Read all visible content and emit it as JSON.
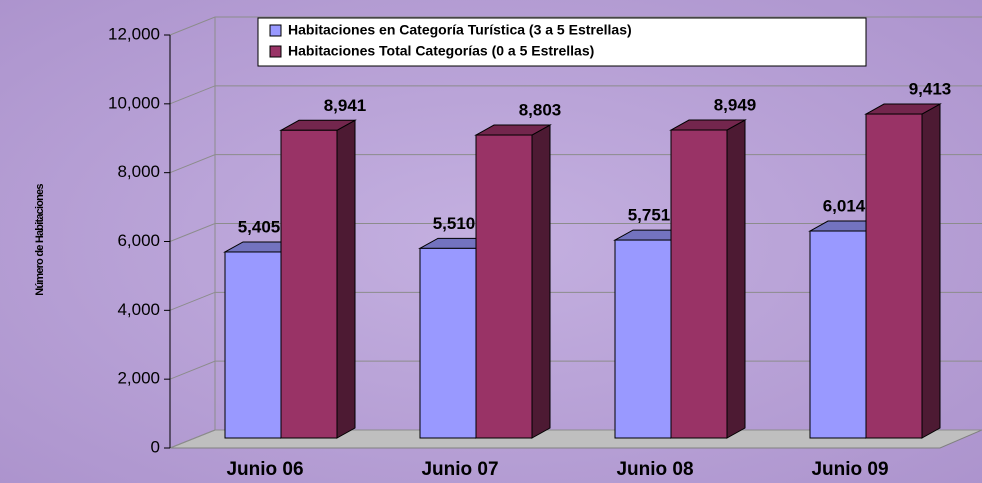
{
  "chart_data": {
    "type": "bar3d",
    "y_axis_label": "Número de Habitaciones",
    "categories": [
      "Junio 06",
      "Junio 07",
      "Junio 08",
      "Junio 09"
    ],
    "series": [
      {
        "name": "Habitaciones en Categoría Turística (3 a 5 Estrellas)",
        "color": "#9999ff",
        "values": [
          5405,
          5510,
          5751,
          6014
        ],
        "value_labels": [
          "5,405",
          "5,510",
          "5,751",
          "6,014"
        ]
      },
      {
        "name": "Habitaciones Total Categorías (0 a 5 Estrellas)",
        "color": "#993366",
        "values": [
          8941,
          8803,
          8949,
          9413
        ],
        "value_labels": [
          "8,941",
          "8,803",
          "8,949",
          "9,413"
        ]
      }
    ],
    "ylim": [
      0,
      12000
    ],
    "yticks": [
      0,
      {
        "value": 2000,
        "label": "2,000"
      },
      {
        "value": 4000,
        "label": "4,000"
      },
      {
        "value": 6000,
        "label": "6,000"
      },
      {
        "value": 8000,
        "label": "8,000"
      },
      {
        "value": 10000,
        "label": "10,000"
      },
      {
        "value": 12000,
        "label": "12,000"
      }
    ],
    "grid": true,
    "legend": "top"
  }
}
